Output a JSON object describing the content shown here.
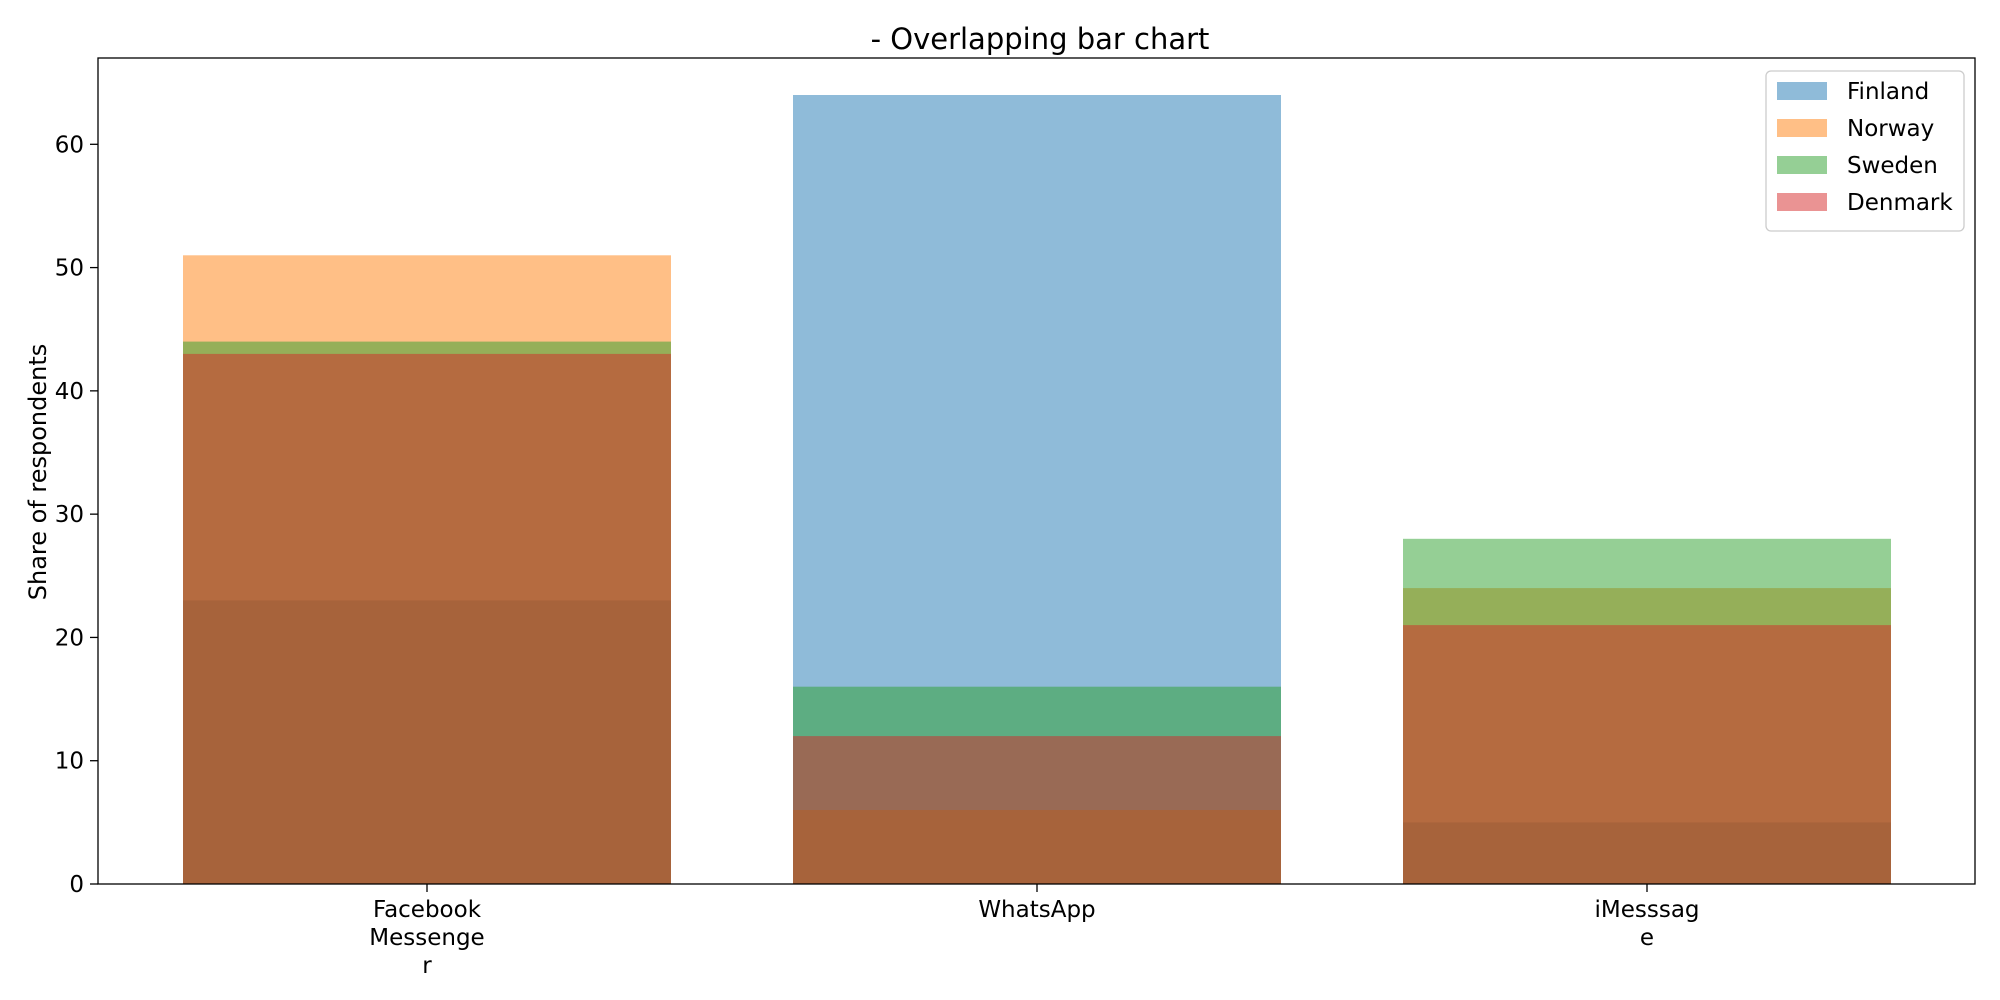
{
  "chart_data": {
    "type": "bar",
    "title": "- Overlapping bar chart",
    "xlabel": "",
    "ylabel": "Share of respondents",
    "categories": [
      "Facebook Messenger",
      "WhatsApp",
      "iMesssage"
    ],
    "category_label_lines": [
      [
        "Facebook",
        "Messenge",
        "r"
      ],
      [
        "WhatsApp"
      ],
      [
        "iMesssag",
        "e"
      ]
    ],
    "series": [
      {
        "name": "Finland",
        "values": [
          23,
          64,
          5
        ],
        "color": "#1f77b4"
      },
      {
        "name": "Norway",
        "values": [
          51,
          6,
          24
        ],
        "color": "#ff7f0e"
      },
      {
        "name": "Sweden",
        "values": [
          44,
          16,
          28
        ],
        "color": "#2ca02c"
      },
      {
        "name": "Denmark",
        "values": [
          43,
          12,
          21
        ],
        "color": "#d62728"
      }
    ],
    "bar_opacity": 0.5,
    "ylim": [
      0,
      67
    ],
    "yticks": [
      0,
      10,
      20,
      30,
      40,
      50,
      60
    ],
    "grid": false,
    "legend_position": "top-right"
  }
}
